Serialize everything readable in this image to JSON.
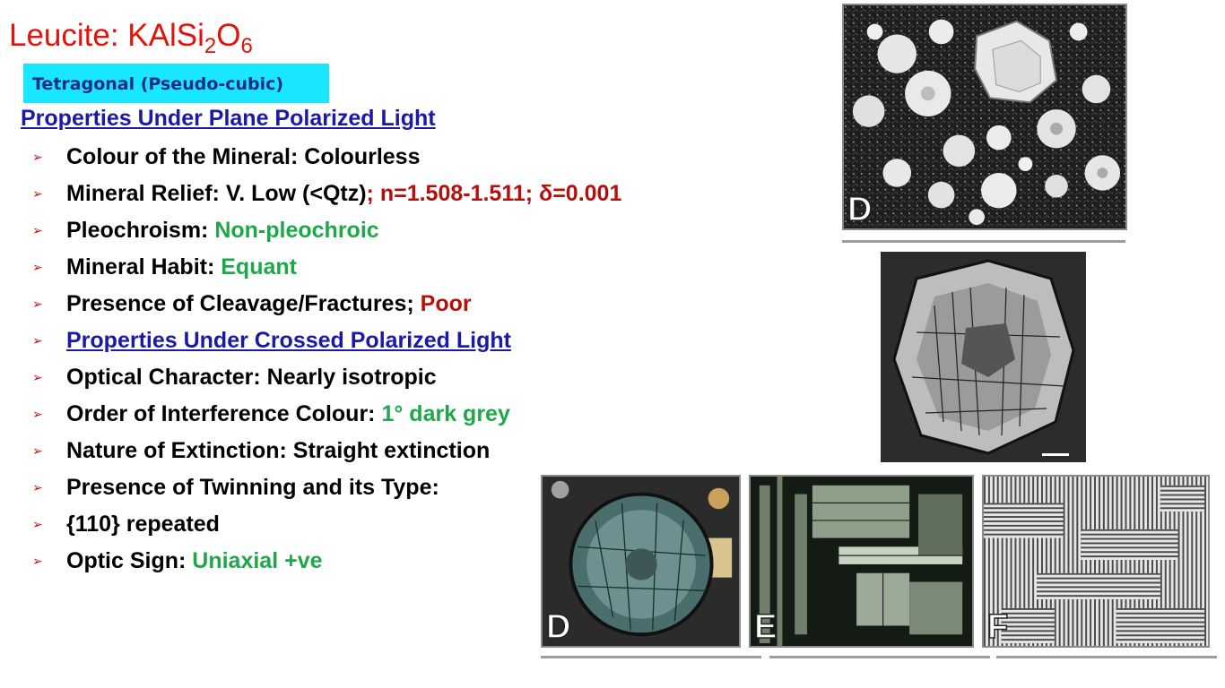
{
  "title": {
    "prefix": "Leucite: KAlSi",
    "sub1": "2",
    "mid": "O",
    "sub2": "6"
  },
  "crystal_system": "Tetragonal (Pseudo-cubic)",
  "ppl_heading": "Properties Under Plane Polarized Light",
  "bullet_glyph": "➢",
  "properties": [
    {
      "label": "Colour of the Mineral: Colourless"
    },
    {
      "label": "Mineral Relief: V. Low (<Qtz)",
      "value": "; n=1.508-1.511; δ=0.001"
    },
    {
      "label": "Pleochroism: ",
      "value": "Non-pleochroic"
    },
    {
      "label": "Mineral Habit: ",
      "value": "Equant"
    },
    {
      "label": "Presence of Cleavage/Fractures; ",
      "value": "Poor"
    },
    {
      "link": "Properties Under Crossed Polarized Light"
    },
    {
      "label": "Optical Character: Nearly isotropic"
    },
    {
      "label": "Order of Interference Colour: ",
      "value": "1° dark grey"
    },
    {
      "label": "Nature of Extinction: Straight extinction"
    },
    {
      "label": "Presence of Twinning and its Type:"
    },
    {
      "label": "{110} repeated"
    },
    {
      "label": "Optic Sign: ",
      "value": "Uniaxial +ve"
    }
  ],
  "photos": {
    "top_letter": "D",
    "bottom_left_letter": "D",
    "bottom_mid_letter": "E",
    "bottom_right_letter": "F"
  },
  "colors": {
    "title_red": "#e3120b",
    "box_cyan": "#19e6ff",
    "link_blue": "#1a1aa6",
    "value_green": "#1ea84a",
    "value_red": "#b7100c"
  }
}
